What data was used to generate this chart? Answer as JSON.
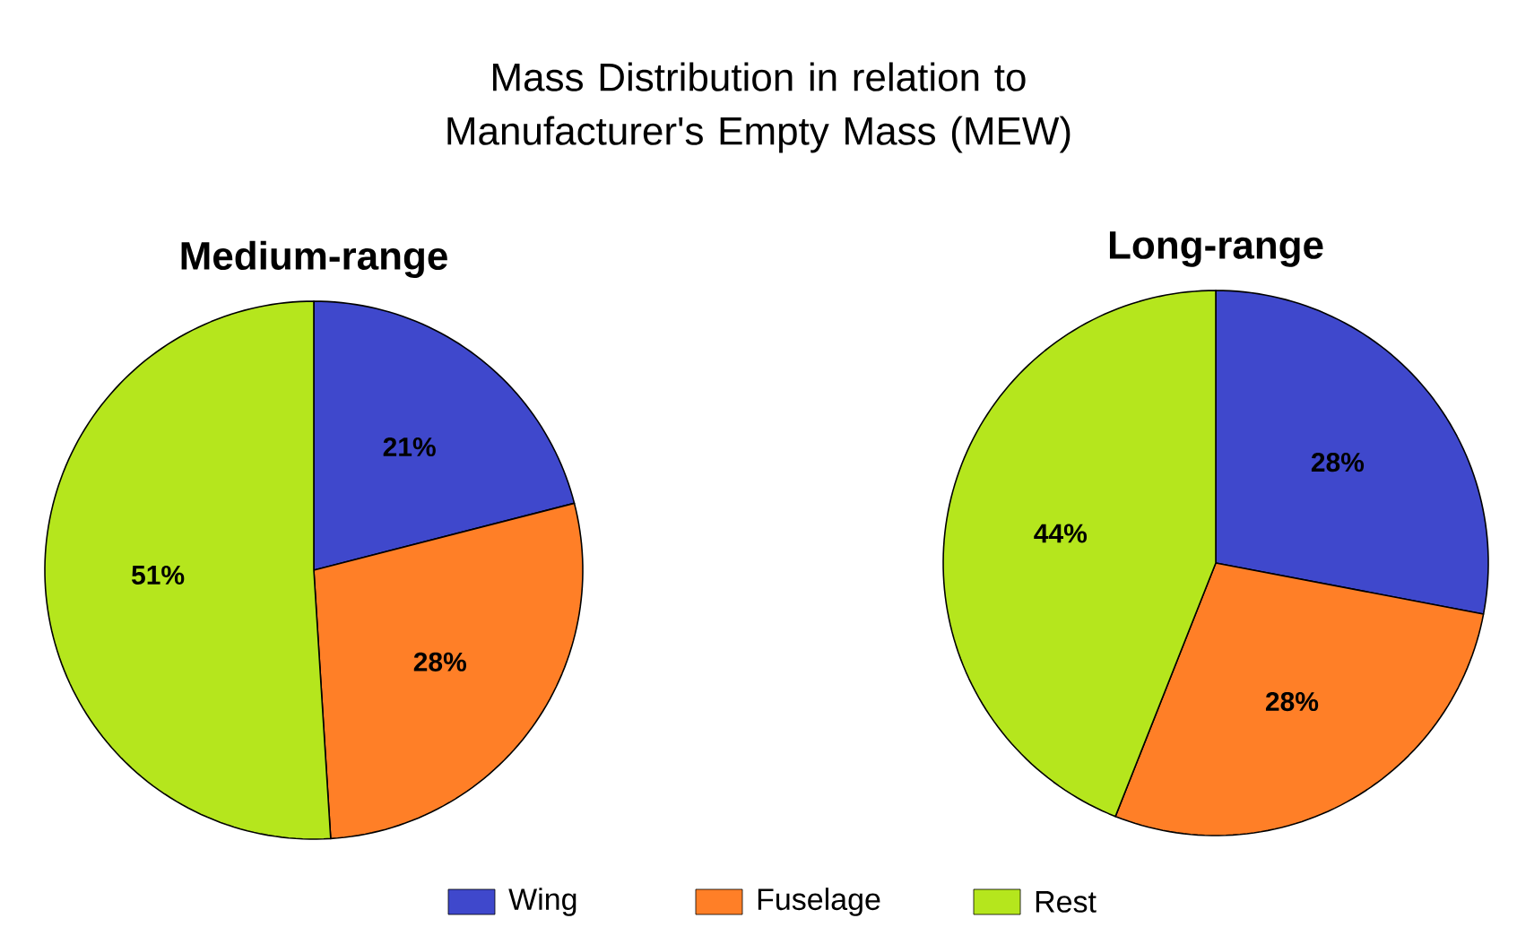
{
  "chart_data": [
    {
      "type": "pie",
      "title": "Medium-range",
      "annotations": [
        "Mass Distribution in relation to Manufacturer's Empty Mass (MEW)"
      ],
      "categories": [
        "Wing",
        "Fuselage",
        "Rest"
      ],
      "values": [
        21,
        28,
        51
      ],
      "value_labels": [
        "21%",
        "28%",
        "51%"
      ],
      "colors": [
        "#3f48cc",
        "#ff7f27",
        "#b5e61d"
      ],
      "legend": "bottom"
    },
    {
      "type": "pie",
      "title": "Long-range",
      "categories": [
        null,
        null,
        null
      ],
      "values": [
        28,
        28,
        44
      ],
      "value_labels": [
        "28%",
        "28%",
        "44%"
      ],
      "colors": [
        "#3f48cc",
        "#ff7f27",
        "#b5e61d"
      ]
    }
  ]
}
